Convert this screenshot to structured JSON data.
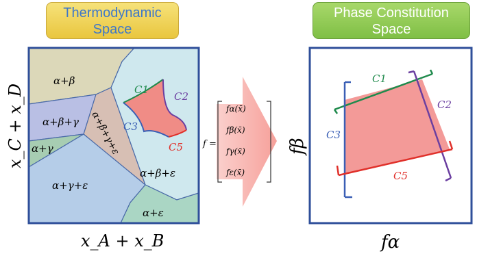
{
  "thermo_badge": {
    "line1": "Thermodynamic",
    "line2": "Space"
  },
  "phase_badge": {
    "line1": "Phase Constitution",
    "line2": "Space"
  },
  "thermo_axes": {
    "x_label": "x_A + x_B",
    "y_label": "x_C + x_D"
  },
  "regions": {
    "ab": "α+β",
    "abg": "α+β+γ",
    "ag": "α+γ",
    "abge": "α+β+γ+ε",
    "abe": "α+β+ε",
    "age": "α+γ+ε",
    "ae": "α+ε"
  },
  "curve_labels": {
    "c1": "C1",
    "c2": "C2",
    "c3": "C3",
    "c5": "C5"
  },
  "vector": {
    "f_eq": "f =",
    "rows": [
      "fα(x̄)",
      "fβ(x̄)",
      "fγ(x̄)",
      "fε(x̄)"
    ]
  },
  "phase_axes": {
    "x_label": "fα",
    "y_label": "fβ"
  },
  "colors": {
    "frame": "#2f4f9a",
    "c1": "#1f8a4c",
    "c2": "#6b3fa0",
    "c3": "#3a5fb5",
    "c5": "#e0302a",
    "patch": "#f08c86"
  }
}
